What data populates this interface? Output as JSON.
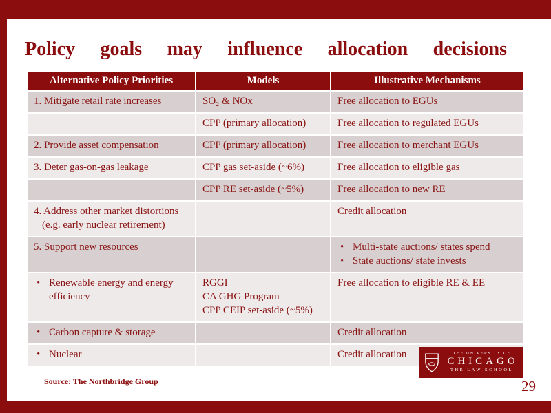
{
  "slide": {
    "title": "Policy goals may influence allocation decisions",
    "source_note": "Source: The Northbridge Group",
    "page_number": "29"
  },
  "table": {
    "headers": [
      "Alternative Policy Priorities",
      "Models",
      "Illustrative Mechanisms"
    ],
    "rows": [
      {
        "shade": "dark",
        "cells": [
          {
            "lines": [
              {
                "text": "1. Mitigate retail rate increases"
              }
            ]
          },
          {
            "lines": [
              {
                "text": "SO₂ & NOx"
              }
            ]
          },
          {
            "lines": [
              {
                "text": "Free allocation to EGUs"
              }
            ]
          }
        ]
      },
      {
        "shade": "light",
        "cells": [
          {
            "lines": []
          },
          {
            "lines": [
              {
                "text": "CPP (primary allocation)"
              }
            ]
          },
          {
            "lines": [
              {
                "text": "Free allocation to regulated EGUs"
              }
            ]
          }
        ]
      },
      {
        "shade": "dark",
        "cells": [
          {
            "lines": [
              {
                "text": "2. Provide asset compensation"
              }
            ]
          },
          {
            "lines": [
              {
                "text": "CPP (primary allocation)"
              }
            ]
          },
          {
            "lines": [
              {
                "text": "Free allocation to merchant EGUs"
              }
            ]
          }
        ]
      },
      {
        "shade": "light",
        "cells": [
          {
            "lines": [
              {
                "text": "3. Deter gas-on-gas leakage"
              }
            ]
          },
          {
            "lines": [
              {
                "text": "CPP gas set-aside (~6%)"
              }
            ]
          },
          {
            "lines": [
              {
                "text": "Free allocation to eligible gas"
              }
            ]
          }
        ]
      },
      {
        "shade": "dark",
        "cells": [
          {
            "lines": []
          },
          {
            "lines": [
              {
                "text": "CPP RE set-aside (~5%)"
              }
            ]
          },
          {
            "lines": [
              {
                "text": "Free allocation to new RE"
              }
            ]
          }
        ]
      },
      {
        "shade": "light",
        "cells": [
          {
            "lines": [
              {
                "text": "4. Address other market distortions"
              },
              {
                "text": "(e.g. early nuclear retirement)",
                "indent": true
              }
            ]
          },
          {
            "lines": []
          },
          {
            "lines": [
              {
                "text": "Credit allocation"
              }
            ]
          }
        ]
      },
      {
        "shade": "dark",
        "cells": [
          {
            "lines": [
              {
                "text": "5. Support new resources"
              }
            ]
          },
          {
            "lines": []
          },
          {
            "lines": [
              {
                "text": "Multi-state auctions/ states spend",
                "bullet": true
              },
              {
                "text": "State auctions/ state invests",
                "bullet": true
              }
            ]
          }
        ]
      },
      {
        "shade": "light",
        "cells": [
          {
            "lines": [
              {
                "text": "Renewable energy and energy efficiency",
                "bullet": true
              }
            ]
          },
          {
            "lines": [
              {
                "text": "RGGI"
              },
              {
                "text": "CA GHG Program"
              },
              {
                "text": "CPP CEIP set-aside (~5%)"
              }
            ]
          },
          {
            "lines": [
              {
                "text": "Free allocation to eligible RE & EE"
              }
            ]
          }
        ]
      },
      {
        "shade": "dark",
        "cells": [
          {
            "lines": [
              {
                "text": "Carbon capture & storage",
                "bullet": true
              }
            ]
          },
          {
            "lines": []
          },
          {
            "lines": [
              {
                "text": "Credit allocation"
              }
            ]
          }
        ]
      },
      {
        "shade": "light",
        "cells": [
          {
            "lines": [
              {
                "text": "Nuclear",
                "bullet": true
              }
            ]
          },
          {
            "lines": []
          },
          {
            "lines": [
              {
                "text": "Credit allocation"
              }
            ]
          }
        ]
      }
    ]
  },
  "logo": {
    "top_line": "THE UNIVERSITY OF",
    "name": "CHICAGO",
    "bottom_line": "THE LAW SCHOOL"
  },
  "colors": {
    "maroon": "#8c0d0d",
    "band-dark": "#d8d0d0",
    "band-light": "#efeaea",
    "text": "#8a1414"
  }
}
